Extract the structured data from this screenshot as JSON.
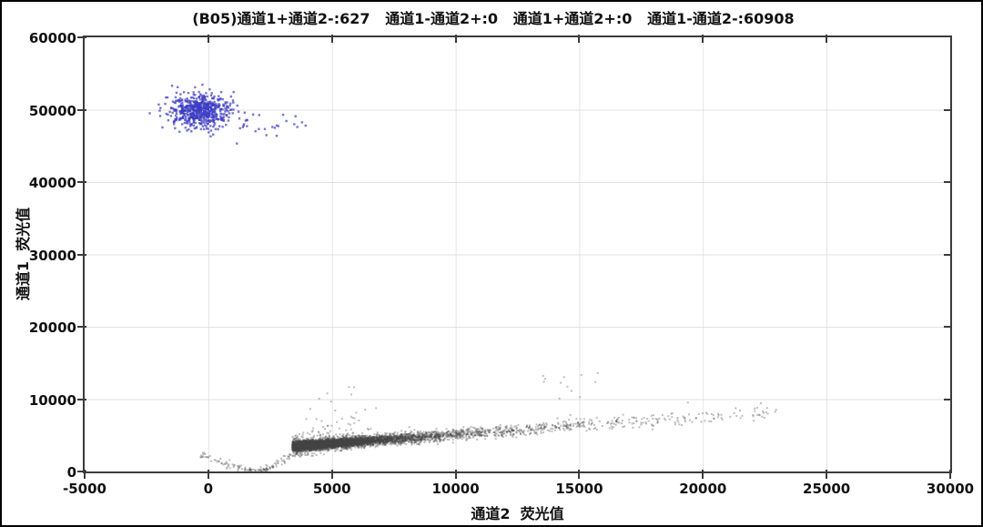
{
  "figure": {
    "background": "#ffffff",
    "outer_border_color": "#000000"
  },
  "chart_data": {
    "type": "scatter",
    "title": "(B05)通道1+通道2-:627   通道1-通道2+:0   通道1+通道2+:0   通道1-通道2-:60908",
    "xlabel": "通道2  荧光值",
    "ylabel": "通道1  荧光值",
    "xlim": [
      -5000,
      30000
    ],
    "ylim": [
      0,
      60000
    ],
    "x_ticks": [
      "-5000",
      "0",
      "5000",
      "10000",
      "15000",
      "20000",
      "25000",
      "30000"
    ],
    "y_ticks": [
      "0",
      "10000",
      "20000",
      "30000",
      "40000",
      "50000",
      "60000"
    ],
    "grid": true,
    "gridline_color": "#d9d9d9",
    "axis_color": "#3b3b3b",
    "legend_position": "none",
    "quadrants": [
      {
        "label": "通道1+通道2-",
        "count": 627
      },
      {
        "label": "通道1-通道2+",
        "count": 0
      },
      {
        "label": "通道1+通道2+",
        "count": 0
      },
      {
        "label": "通道1-通道2-",
        "count": 60908
      }
    ],
    "series": [
      {
        "name": "channel1-positive-cluster",
        "label": "通道1+通道2-",
        "count": 627,
        "color": "#5c5cd0",
        "draw_rgba": "rgba(60,60,195,0.7)",
        "point_size": 2.4,
        "cluster_center": {
          "x": -350,
          "y": 49900
        },
        "cluster_sigma": {
          "x": 560,
          "y": 1150
        },
        "tail_x_max": 4600,
        "tail_y": 47900
      },
      {
        "name": "double-negative-band",
        "label": "通道1-通道2-",
        "count": 60908,
        "rendered_points": 12250,
        "color": "#a8a8a8",
        "draw_rgba": "rgba(70,70,70,0.35)",
        "point_size": 2,
        "band": {
          "x_start": 3400,
          "x_end": 23200,
          "y_at_start": 3400,
          "slope": 0.245
        },
        "dense_core": {
          "x_center": 5000,
          "x_sigma": 620,
          "y_sigma": 130
        },
        "hook_points": [
          [
            -300,
            2400
          ],
          [
            300,
            1700
          ],
          [
            900,
            800
          ],
          [
            1600,
            330
          ],
          [
            2300,
            260
          ],
          [
            2900,
            950
          ],
          [
            3300,
            2500
          ]
        ],
        "spray": {
          "x_center": 5200,
          "x_sigma": 750,
          "y_max": 14000
        },
        "mid_high_outliers": {
          "x_min": 13200,
          "x_max": 15900,
          "y_min": 9700,
          "y_max": 13800
        }
      }
    ]
  }
}
